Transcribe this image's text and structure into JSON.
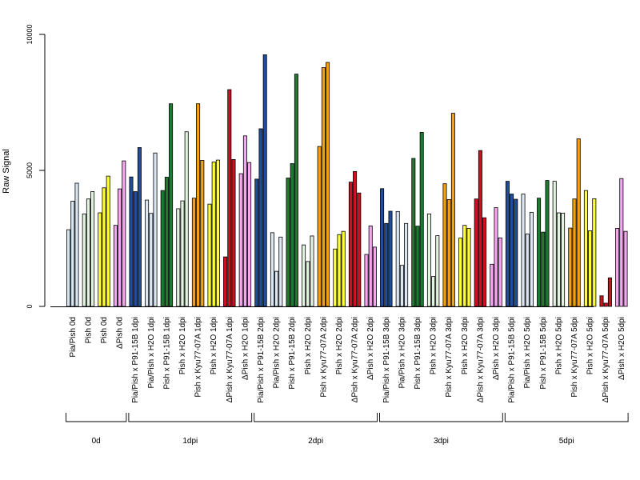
{
  "chart_data": {
    "type": "bar",
    "ylabel": "Raw Signal",
    "ylim": [
      0,
      10000
    ],
    "y_ticks": [
      0,
      5000,
      10000
    ],
    "grid": false,
    "colors": {
      "Pia/Pish": "#d6e6f5",
      "Pia/Pish x P91-15B": "#1f4e9a",
      "Pia/Pish x H2O": "#dbe8f3",
      "Pish x P91-15B": "#1e7a30",
      "Pish x H2O": "#e2f3df",
      "Pish x Kyu77-07A": "#f5a00f",
      "Pish": "#ffff33",
      "Pish x Kyu77-07A (red)": "#d01020",
      "ΔPish": "#f6a6f0"
    },
    "categories": [
      {
        "label": "Pia/Pish 0d",
        "group": 0,
        "color": "#d6e6f5",
        "values": [
          2820,
          3870,
          4530
        ]
      },
      {
        "label": "Pish 0d",
        "group": 0,
        "color": "#e2f3df",
        "values": [
          3400,
          3950,
          4220
        ]
      },
      {
        "label": "Pish 0d",
        "group": 0,
        "color": "#ffff33",
        "values": [
          3440,
          4360,
          4790
        ]
      },
      {
        "label": "ΔPish 0d",
        "group": 0,
        "color": "#f6a6f0",
        "values": [
          2980,
          4320,
          5350
        ]
      },
      {
        "label": "Pia/Pish x P91-15B 1dpi",
        "group": 1,
        "color": "#1f4e9a",
        "values": [
          4760,
          4220,
          5840
        ]
      },
      {
        "label": "Pia/Pish x H2O 1dpi",
        "group": 1,
        "color": "#dbe8f3",
        "values": [
          3910,
          3420,
          5640
        ]
      },
      {
        "label": "Pish x P91-15B 1dpi",
        "group": 1,
        "color": "#1e7a30",
        "values": [
          4260,
          4750,
          7450
        ]
      },
      {
        "label": "Pish x H2O 1dpi",
        "group": 1,
        "color": "#e2f3df",
        "values": [
          3590,
          3880,
          6420
        ]
      },
      {
        "label": "Pish x Kyu77-07A 1dpi",
        "group": 1,
        "color": "#f5a00f",
        "values": [
          3980,
          7450,
          5370
        ]
      },
      {
        "label": "Pish x H2O 1dpi",
        "group": 1,
        "color": "#ffff33",
        "values": [
          3760,
          5310,
          5380
        ]
      },
      {
        "label": "ΔPish x Kyu77-07A 1dpi",
        "group": 1,
        "color": "#d01020",
        "values": [
          1820,
          7970,
          5400
        ]
      },
      {
        "label": "ΔPish x H2O 1dpi",
        "group": 1,
        "color": "#f6a6f0",
        "values": [
          4880,
          6270,
          5290
        ]
      },
      {
        "label": "Pia/Pish x P91-15B 2dpi",
        "group": 2,
        "color": "#1f4e9a",
        "values": [
          4680,
          6530,
          9250
        ]
      },
      {
        "label": "Pia/Pish x H2O 2dpi",
        "group": 2,
        "color": "#dbe8f3",
        "values": [
          2710,
          1290,
          2550
        ]
      },
      {
        "label": "Pish x P91-15B 2dpi",
        "group": 2,
        "color": "#1e7a30",
        "values": [
          4720,
          5250,
          8540
        ]
      },
      {
        "label": "Pish x H2O 2dpi",
        "group": 2,
        "color": "#e2f3df",
        "values": [
          2260,
          1650,
          2590
        ]
      },
      {
        "label": "Pish x Kyu77-07A 2dpi",
        "group": 2,
        "color": "#f5a00f",
        "values": [
          5880,
          8780,
          8970
        ]
      },
      {
        "label": "Pish x H2O 2dpi",
        "group": 2,
        "color": "#ffff33",
        "values": [
          2110,
          2640,
          2760
        ]
      },
      {
        "label": "ΔPish x Kyu77-07A 2dpi",
        "group": 2,
        "color": "#d01020",
        "values": [
          4570,
          4960,
          4170
        ]
      },
      {
        "label": "ΔPish x H2O 2dpi",
        "group": 2,
        "color": "#f6a6f0",
        "values": [
          1910,
          2960,
          2180
        ]
      },
      {
        "label": "Pia/Pish x P91-15B 3dpi",
        "group": 3,
        "color": "#1f4e9a",
        "values": [
          4330,
          3050,
          3500
        ]
      },
      {
        "label": "Pia/Pish x H2O 3dpi",
        "group": 3,
        "color": "#dbe8f3",
        "values": [
          3490,
          1510,
          3050
        ]
      },
      {
        "label": "Pish x P91-15B 3dpi",
        "group": 3,
        "color": "#1e7a30",
        "values": [
          5440,
          2950,
          6400
        ]
      },
      {
        "label": "Pish x H2O 3dpi",
        "group": 3,
        "color": "#e2f3df",
        "values": [
          3400,
          1100,
          2600
        ]
      },
      {
        "label": "Pish x Kyu77-07A 3dpi",
        "group": 3,
        "color": "#f5a00f",
        "values": [
          4510,
          3930,
          7100
        ]
      },
      {
        "label": "Pish x H2O 3dpi",
        "group": 3,
        "color": "#ffff33",
        "values": [
          2510,
          2980,
          2870
        ]
      },
      {
        "label": "ΔPish x Kyu77-07A 3dpi",
        "group": 3,
        "color": "#d01020",
        "values": [
          3950,
          5730,
          3260
        ]
      },
      {
        "label": "ΔPish x H2O 3dpi",
        "group": 3,
        "color": "#f6a6f0",
        "values": [
          1550,
          3630,
          2520
        ]
      },
      {
        "label": "Pia/Pish x P91-15B 5dpi",
        "group": 4,
        "color": "#1f4e9a",
        "values": [
          4600,
          4130,
          3940
        ]
      },
      {
        "label": "Pia/Pish x H2O 5dpi",
        "group": 4,
        "color": "#dbe8f3",
        "values": [
          4130,
          2660,
          3460
        ]
      },
      {
        "label": "Pish x P91-15B 5dpi",
        "group": 4,
        "color": "#1e7a30",
        "values": [
          3980,
          2730,
          4630
        ]
      },
      {
        "label": "Pish x H2O 5dpi",
        "group": 4,
        "color": "#e2f3df",
        "values": [
          4600,
          3440,
          3430
        ]
      },
      {
        "label": "Pish x Kyu77-07A 5dpi",
        "group": 4,
        "color": "#f5a00f",
        "values": [
          2880,
          3950,
          6160
        ]
      },
      {
        "label": "Pish x H2O 5dpi",
        "group": 4,
        "color": "#ffff33",
        "values": [
          4260,
          2780,
          3960
        ]
      },
      {
        "label": "ΔPish x Kyu77-07A 5dpi",
        "group": 4,
        "color": "#d01020",
        "values": [
          390,
          120,
          1050
        ]
      },
      {
        "label": "ΔPish x H2O 5dpi",
        "group": 4,
        "color": "#f6a6f0",
        "values": [
          2870,
          4700,
          2760
        ]
      }
    ],
    "groups": [
      {
        "label": "0d"
      },
      {
        "label": "1dpi"
      },
      {
        "label": "2dpi"
      },
      {
        "label": "3dpi"
      },
      {
        "label": "5dpi"
      }
    ]
  }
}
